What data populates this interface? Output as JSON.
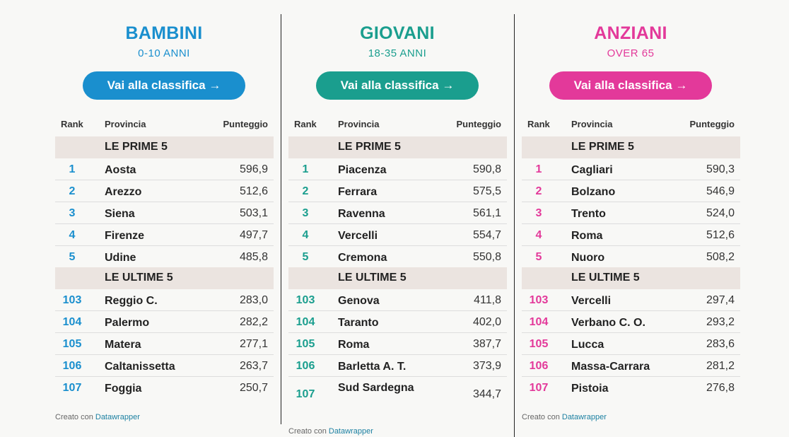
{
  "headers": {
    "rank": "Rank",
    "province": "Provincia",
    "score": "Punteggio"
  },
  "section_top": "LE PRIME 5",
  "section_bottom": "LE ULTIME 5",
  "footer": {
    "prefix": "Creato con ",
    "link": "Datawrapper"
  },
  "colors": {
    "bambini": "#1a8fce",
    "giovani": "#1a9e8e",
    "anziani": "#e3399a"
  },
  "columns": [
    {
      "title": "BAMBINI",
      "subtitle": "0-10 ANNI",
      "button_label": "Vai alla classifica →",
      "top": [
        {
          "rank": "1",
          "province": "Aosta",
          "score": "596,9"
        },
        {
          "rank": "2",
          "province": "Arezzo",
          "score": "512,6"
        },
        {
          "rank": "3",
          "province": "Siena",
          "score": "503,1"
        },
        {
          "rank": "4",
          "province": "Firenze",
          "score": "497,7"
        },
        {
          "rank": "5",
          "province": "Udine",
          "score": "485,8"
        }
      ],
      "bottom": [
        {
          "rank": "103",
          "province": "Reggio C.",
          "score": "283,0"
        },
        {
          "rank": "104",
          "province": "Palermo",
          "score": "282,2"
        },
        {
          "rank": "105",
          "province": "Matera",
          "score": "277,1"
        },
        {
          "rank": "106",
          "province": "Caltanissetta",
          "score": "263,7"
        },
        {
          "rank": "107",
          "province": "Foggia",
          "score": "250,7"
        }
      ]
    },
    {
      "title": "GIOVANI",
      "subtitle": "18-35 ANNI",
      "button_label": "Vai alla classifica →",
      "top": [
        {
          "rank": "1",
          "province": "Piacenza",
          "score": "590,8"
        },
        {
          "rank": "2",
          "province": "Ferrara",
          "score": "575,5"
        },
        {
          "rank": "3",
          "province": "Ravenna",
          "score": "561,1"
        },
        {
          "rank": "4",
          "province": "Vercelli",
          "score": "554,7"
        },
        {
          "rank": "5",
          "province": "Cremona",
          "score": "550,8"
        }
      ],
      "bottom": [
        {
          "rank": "103",
          "province": "Genova",
          "score": "411,8"
        },
        {
          "rank": "104",
          "province": "Taranto",
          "score": "402,0"
        },
        {
          "rank": "105",
          "province": "Roma",
          "score": "387,7"
        },
        {
          "rank": "106",
          "province": "Barletta A. T.",
          "score": "373,9"
        },
        {
          "rank": "107",
          "province": "Sud Sardegna",
          "score": "344,7"
        }
      ]
    },
    {
      "title": "ANZIANI",
      "subtitle": "OVER 65",
      "button_label": "Vai alla classifica →",
      "top": [
        {
          "rank": "1",
          "province": "Cagliari",
          "score": "590,3"
        },
        {
          "rank": "2",
          "province": "Bolzano",
          "score": "546,9"
        },
        {
          "rank": "3",
          "province": "Trento",
          "score": "524,0"
        },
        {
          "rank": "4",
          "province": "Roma",
          "score": "512,6"
        },
        {
          "rank": "5",
          "province": "Nuoro",
          "score": "508,2"
        }
      ],
      "bottom": [
        {
          "rank": "103",
          "province": "Vercelli",
          "score": "297,4"
        },
        {
          "rank": "104",
          "province": "Verbano C. O.",
          "score": "293,2"
        },
        {
          "rank": "105",
          "province": "Lucca",
          "score": "283,6"
        },
        {
          "rank": "106",
          "province": "Massa-Carrara",
          "score": "281,2"
        },
        {
          "rank": "107",
          "province": "Pistoia",
          "score": "276,8"
        }
      ]
    }
  ]
}
